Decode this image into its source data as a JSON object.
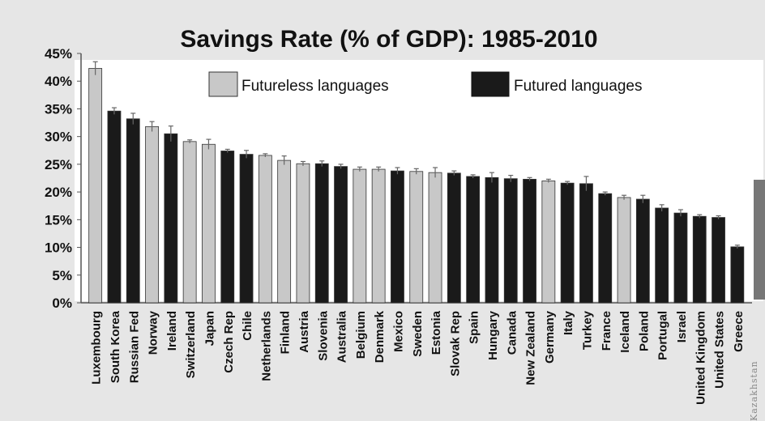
{
  "chart_data": {
    "type": "bar",
    "title": "Savings Rate (% of GDP): 1985-2010",
    "xlabel": "",
    "ylabel": "",
    "ylim": [
      0,
      45
    ],
    "yticks": [
      "0%",
      "5%",
      "10%",
      "15%",
      "20%",
      "25%",
      "30%",
      "35%",
      "40%",
      "45%"
    ],
    "legend": [
      {
        "label": "Futureless languages",
        "color": "#c8c8c8"
      },
      {
        "label": "Futured languages",
        "color": "#1a1a1a"
      }
    ],
    "legend_position": "top",
    "grid": false,
    "error_bars": true,
    "categories": [
      "Luxembourg",
      "South Korea",
      "Russian Fed",
      "Norway",
      "Ireland",
      "Switzerland",
      "Japan",
      "Czech Rep",
      "Chile",
      "Netherlands",
      "Finland",
      "Austria",
      "Slovenia",
      "Australia",
      "Belgium",
      "Denmark",
      "Mexico",
      "Sweden",
      "Estonia",
      "Slovak Rep",
      "Spain",
      "Hungary",
      "Canada",
      "New Zealand",
      "Germany",
      "Italy",
      "Turkey",
      "France",
      "Iceland",
      "Poland",
      "Portugal",
      "Israel",
      "United Kingdom",
      "United States",
      "Greece"
    ],
    "values": [
      42.3,
      34.6,
      33.2,
      31.8,
      30.5,
      29.1,
      28.6,
      27.4,
      26.8,
      26.6,
      25.7,
      25.1,
      25.1,
      24.6,
      24.1,
      24.1,
      23.8,
      23.7,
      23.5,
      23.4,
      22.8,
      22.6,
      22.4,
      22.3,
      22.0,
      21.6,
      21.5,
      19.7,
      19.0,
      18.7,
      17.1,
      16.2,
      15.6,
      15.4,
      10.1
    ],
    "errors": [
      1.2,
      0.6,
      1.0,
      0.9,
      1.4,
      0.3,
      0.9,
      0.3,
      0.7,
      0.3,
      0.8,
      0.4,
      0.5,
      0.4,
      0.4,
      0.4,
      0.6,
      0.5,
      0.9,
      0.4,
      0.3,
      0.9,
      0.6,
      0.3,
      0.3,
      0.3,
      1.3,
      0.3,
      0.4,
      0.7,
      0.6,
      0.6,
      0.3,
      0.3,
      0.3
    ],
    "groups": [
      "futureless",
      "futured",
      "futured",
      "futureless",
      "futured",
      "futureless",
      "futureless",
      "futured",
      "futured",
      "futureless",
      "futureless",
      "futureless",
      "futured",
      "futured",
      "futureless",
      "futureless",
      "futured",
      "futureless",
      "futureless",
      "futured",
      "futured",
      "futured",
      "futured",
      "futured",
      "futureless",
      "futured",
      "futured",
      "futured",
      "futureless",
      "futured",
      "futured",
      "futured",
      "futured",
      "futured",
      "futured"
    ],
    "colors": {
      "futureless": "#c8c8c8",
      "futured": "#1a1a1a"
    }
  },
  "watermark": "Kazakhstan"
}
